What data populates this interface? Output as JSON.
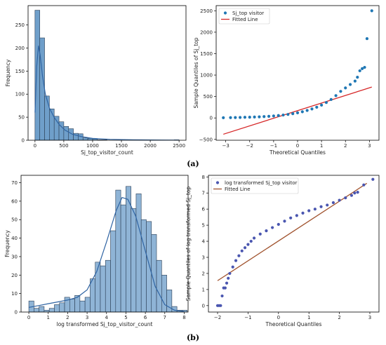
{
  "panel_labels": [
    "(a)",
    "(b)"
  ],
  "chart_data": [
    {
      "id": "hist-a",
      "type": "bar",
      "subtype": "histogram with KDE",
      "title": "",
      "xlabel": "Sj_top_visitor_count",
      "ylabel": "Frequency",
      "xlim": [
        -120,
        2620
      ],
      "ylim": [
        0,
        292
      ],
      "xticks": [
        0,
        500,
        1000,
        1500,
        2000,
        2500
      ],
      "yticks": [
        0,
        50,
        100,
        150,
        200,
        250
      ],
      "bin_width": 83.3,
      "bin_start": 0,
      "values": [
        282,
        222,
        96,
        68,
        52,
        40,
        30,
        25,
        15,
        14,
        5,
        4,
        3,
        1,
        1,
        0,
        0,
        0,
        0,
        0,
        0,
        0,
        0,
        0,
        0,
        0,
        0,
        0,
        0,
        1
      ],
      "kde": {
        "x": [
          0,
          30,
          60,
          90,
          130,
          180,
          250,
          330,
          420,
          520,
          650,
          800,
          1000,
          1300,
          1700,
          2200,
          2500
        ],
        "y": [
          60,
          160,
          205,
          185,
          140,
          100,
          70,
          50,
          34,
          22,
          13,
          8,
          4,
          2,
          1,
          0.5,
          0.3
        ]
      },
      "bar_color": "#6f9fca",
      "line_color": "#2f64a3"
    },
    {
      "id": "qq-a",
      "type": "scatter",
      "subtype": "Q-Q plot",
      "title": "",
      "xlabel": "Theoretical Quantiles",
      "ylabel": "Sample Quantiles of Sj_top",
      "xlim": [
        -3.4,
        3.4
      ],
      "ylim": [
        -520,
        2620
      ],
      "xticks": [
        -3,
        -2,
        -1,
        0,
        1,
        2,
        3
      ],
      "yticks": [
        -500,
        0,
        500,
        1000,
        1500,
        2000,
        2500
      ],
      "legend": {
        "position": "top-left",
        "entries": [
          "Sj_top visitor",
          "Fitted Line"
        ]
      },
      "points_x": [
        -3.1,
        -2.8,
        -2.6,
        -2.4,
        -2.2,
        -2.0,
        -1.8,
        -1.6,
        -1.4,
        -1.2,
        -1.0,
        -0.8,
        -0.6,
        -0.4,
        -0.2,
        0.0,
        0.2,
        0.4,
        0.6,
        0.8,
        1.0,
        1.2,
        1.4,
        1.6,
        1.8,
        2.0,
        2.2,
        2.4,
        2.5,
        2.6,
        2.7,
        2.8,
        2.9,
        3.1
      ],
      "points_y": [
        5,
        8,
        10,
        12,
        15,
        18,
        22,
        26,
        32,
        38,
        46,
        56,
        68,
        82,
        100,
        120,
        145,
        175,
        210,
        250,
        300,
        360,
        430,
        520,
        620,
        700,
        780,
        860,
        950,
        1100,
        1150,
        1180,
        1850,
        2500
      ],
      "fit_line": {
        "x": [
          -3.1,
          3.1
        ],
        "y": [
          -380,
          720
        ]
      },
      "point_color": "#1f77b4",
      "fit_color": "#d62728"
    },
    {
      "id": "hist-b",
      "type": "bar",
      "subtype": "histogram with KDE",
      "title": "",
      "xlabel": "log transformed Sj_top_visitor_count",
      "ylabel": "Frequency",
      "xlim": [
        -0.4,
        8.2
      ],
      "ylim": [
        0,
        74
      ],
      "xticks": [
        0,
        1,
        2,
        3,
        4,
        5,
        6,
        7,
        8
      ],
      "yticks": [
        0,
        10,
        20,
        30,
        40,
        50,
        60,
        70
      ],
      "bin_width": 0.263,
      "bin_start": 0,
      "values": [
        6,
        2,
        3,
        1,
        2,
        4,
        5,
        8,
        7,
        9,
        6,
        8,
        18,
        27,
        25,
        28,
        44,
        66,
        58,
        68,
        56,
        64,
        50,
        49,
        42,
        28,
        20,
        12,
        3,
        1,
        1
      ],
      "kde": {
        "x": [
          0,
          0.5,
          1,
          1.5,
          2,
          2.5,
          3,
          3.5,
          4,
          4.5,
          4.8,
          5.1,
          5.5,
          6,
          6.5,
          7,
          7.5,
          8
        ],
        "y": [
          2.5,
          3.5,
          4.5,
          5.5,
          6.5,
          8,
          12,
          22,
          38,
          55,
          62,
          61,
          52,
          33,
          14,
          4,
          1,
          0.3
        ]
      },
      "bar_color": "#8fb4d6",
      "line_color": "#2f64a3"
    },
    {
      "id": "qq-b",
      "type": "scatter",
      "subtype": "Q-Q plot",
      "title": "",
      "xlabel": "Theoretical Quantiles",
      "ylabel": "Sample Quantiles of log transformed Sj_top",
      "xlim": [
        -2.3,
        3.3
      ],
      "ylim": [
        -0.4,
        8.1
      ],
      "xticks": [
        -2,
        -1,
        0,
        1,
        2,
        3
      ],
      "yticks": [
        0,
        1,
        2,
        3,
        4,
        5,
        6,
        7,
        8
      ],
      "legend": {
        "position": "top-left",
        "entries": [
          "log transformed Sj_top visitor",
          "Fitted Line"
        ]
      },
      "points_x": [
        -2.0,
        -1.95,
        -1.9,
        -1.85,
        -1.8,
        -1.75,
        -1.7,
        -1.65,
        -1.6,
        -1.5,
        -1.4,
        -1.3,
        -1.2,
        -1.1,
        -1.0,
        -0.9,
        -0.8,
        -0.6,
        -0.4,
        -0.2,
        0.0,
        0.2,
        0.4,
        0.6,
        0.8,
        1.0,
        1.2,
        1.4,
        1.6,
        1.8,
        2.0,
        2.2,
        2.4,
        2.5,
        2.6,
        2.8,
        3.1
      ],
      "points_y": [
        0.0,
        0.0,
        0.0,
        0.6,
        1.1,
        1.1,
        1.4,
        1.7,
        2.0,
        2.4,
        2.8,
        3.1,
        3.4,
        3.6,
        3.8,
        4.0,
        4.2,
        4.45,
        4.65,
        4.85,
        5.05,
        5.25,
        5.45,
        5.6,
        5.75,
        5.9,
        6.0,
        6.15,
        6.25,
        6.4,
        6.55,
        6.7,
        6.85,
        7.0,
        7.05,
        7.5,
        7.85
      ],
      "fit_line": {
        "x": [
          -2.0,
          2.9
        ],
        "y": [
          1.55,
          7.6
        ]
      },
      "point_color": "#4a56b0",
      "fit_color": "#a0522d"
    }
  ]
}
